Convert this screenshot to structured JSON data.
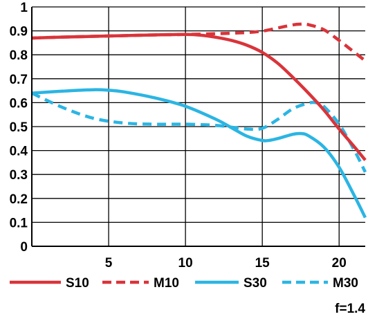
{
  "chart_data": {
    "type": "line",
    "xlim": [
      0,
      21.7
    ],
    "ylim": [
      0,
      1
    ],
    "x_ticks": [
      5,
      10,
      15,
      20
    ],
    "x_tick_labels": [
      "5",
      "10",
      "15",
      "20"
    ],
    "y_ticks": [
      0,
      0.1,
      0.2,
      0.3,
      0.4,
      0.5,
      0.6,
      0.7,
      0.8,
      0.9,
      1
    ],
    "y_tick_labels": [
      "0",
      "0.1",
      "0.2",
      "0.3",
      "0.4",
      "0.5",
      "0.6",
      "0.7",
      "0.8",
      "0.9",
      "1"
    ],
    "grid": true,
    "legend_position": "bottom",
    "annotation": "f=1.4",
    "series": [
      {
        "name": "S10",
        "color": "#d9343a",
        "dash": "solid",
        "x": [
          0,
          2,
          4,
          6,
          8,
          10,
          11,
          12,
          13,
          14,
          15,
          16,
          17,
          18,
          19,
          20,
          21,
          21.7
        ],
        "y": [
          0.87,
          0.874,
          0.877,
          0.88,
          0.883,
          0.885,
          0.882,
          0.873,
          0.86,
          0.84,
          0.81,
          0.765,
          0.705,
          0.64,
          0.57,
          0.49,
          0.415,
          0.36
        ]
      },
      {
        "name": "M10",
        "color": "#d9343a",
        "dash": "dashed",
        "x": [
          0,
          2,
          4,
          6,
          8,
          10,
          12,
          14,
          15,
          16,
          17,
          17.5,
          18,
          19,
          20,
          21,
          21.7
        ],
        "y": [
          0.87,
          0.874,
          0.877,
          0.88,
          0.883,
          0.885,
          0.888,
          0.893,
          0.899,
          0.912,
          0.925,
          0.928,
          0.926,
          0.905,
          0.86,
          0.81,
          0.775
        ]
      },
      {
        "name": "S30",
        "color": "#2bb5e3",
        "dash": "solid",
        "x": [
          0,
          2,
          4,
          5,
          6,
          8,
          10,
          12,
          13,
          14,
          15,
          15.5,
          16,
          17,
          17.5,
          18,
          19,
          20,
          21,
          21.7
        ],
        "y": [
          0.64,
          0.648,
          0.654,
          0.652,
          0.645,
          0.62,
          0.585,
          0.53,
          0.495,
          0.46,
          0.442,
          0.443,
          0.45,
          0.468,
          0.471,
          0.462,
          0.415,
          0.33,
          0.21,
          0.12
        ]
      },
      {
        "name": "M30",
        "color": "#2bb5e3",
        "dash": "dashed",
        "x": [
          0,
          2,
          4,
          6,
          8,
          10,
          12,
          14,
          15,
          16,
          17,
          18,
          18.5,
          19,
          20,
          21,
          21.7
        ],
        "y": [
          0.64,
          0.58,
          0.535,
          0.515,
          0.51,
          0.51,
          0.505,
          0.49,
          0.493,
          0.53,
          0.575,
          0.598,
          0.6,
          0.585,
          0.51,
          0.4,
          0.31
        ]
      }
    ]
  }
}
